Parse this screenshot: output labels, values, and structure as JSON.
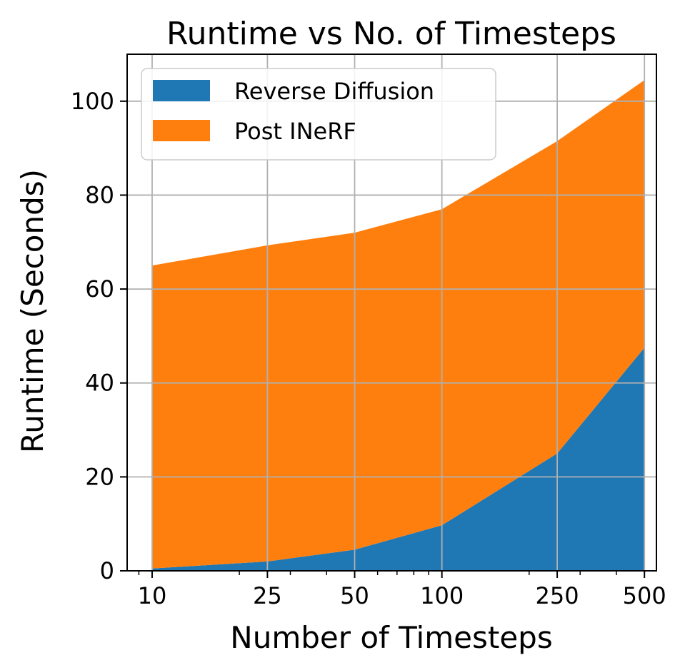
{
  "chart_data": {
    "type": "area",
    "stacked": true,
    "title": "Runtime vs No. of Timesteps",
    "xlabel": "Number of Timesteps",
    "ylabel": "Runtime (Seconds)",
    "x_scale": "log",
    "x": [
      10,
      25,
      50,
      100,
      250,
      500
    ],
    "x_tick_labels": [
      "10",
      "25",
      "50",
      "100",
      "250",
      "500"
    ],
    "y_ticks": [
      0,
      20,
      40,
      60,
      80,
      100
    ],
    "xlim": [
      8.2,
      550
    ],
    "ylim": [
      0,
      110
    ],
    "grid": true,
    "legend_position": "upper-left",
    "series": [
      {
        "name": "Reverse Diffusion",
        "color": "#1f77b4",
        "values": [
          0.5,
          2,
          4.5,
          9.7,
          25,
          47.5
        ]
      },
      {
        "name": "Post INeRF",
        "color": "#ff7f0e",
        "values": [
          64.5,
          67.3,
          67.5,
          67.3,
          66.5,
          57
        ]
      }
    ]
  }
}
